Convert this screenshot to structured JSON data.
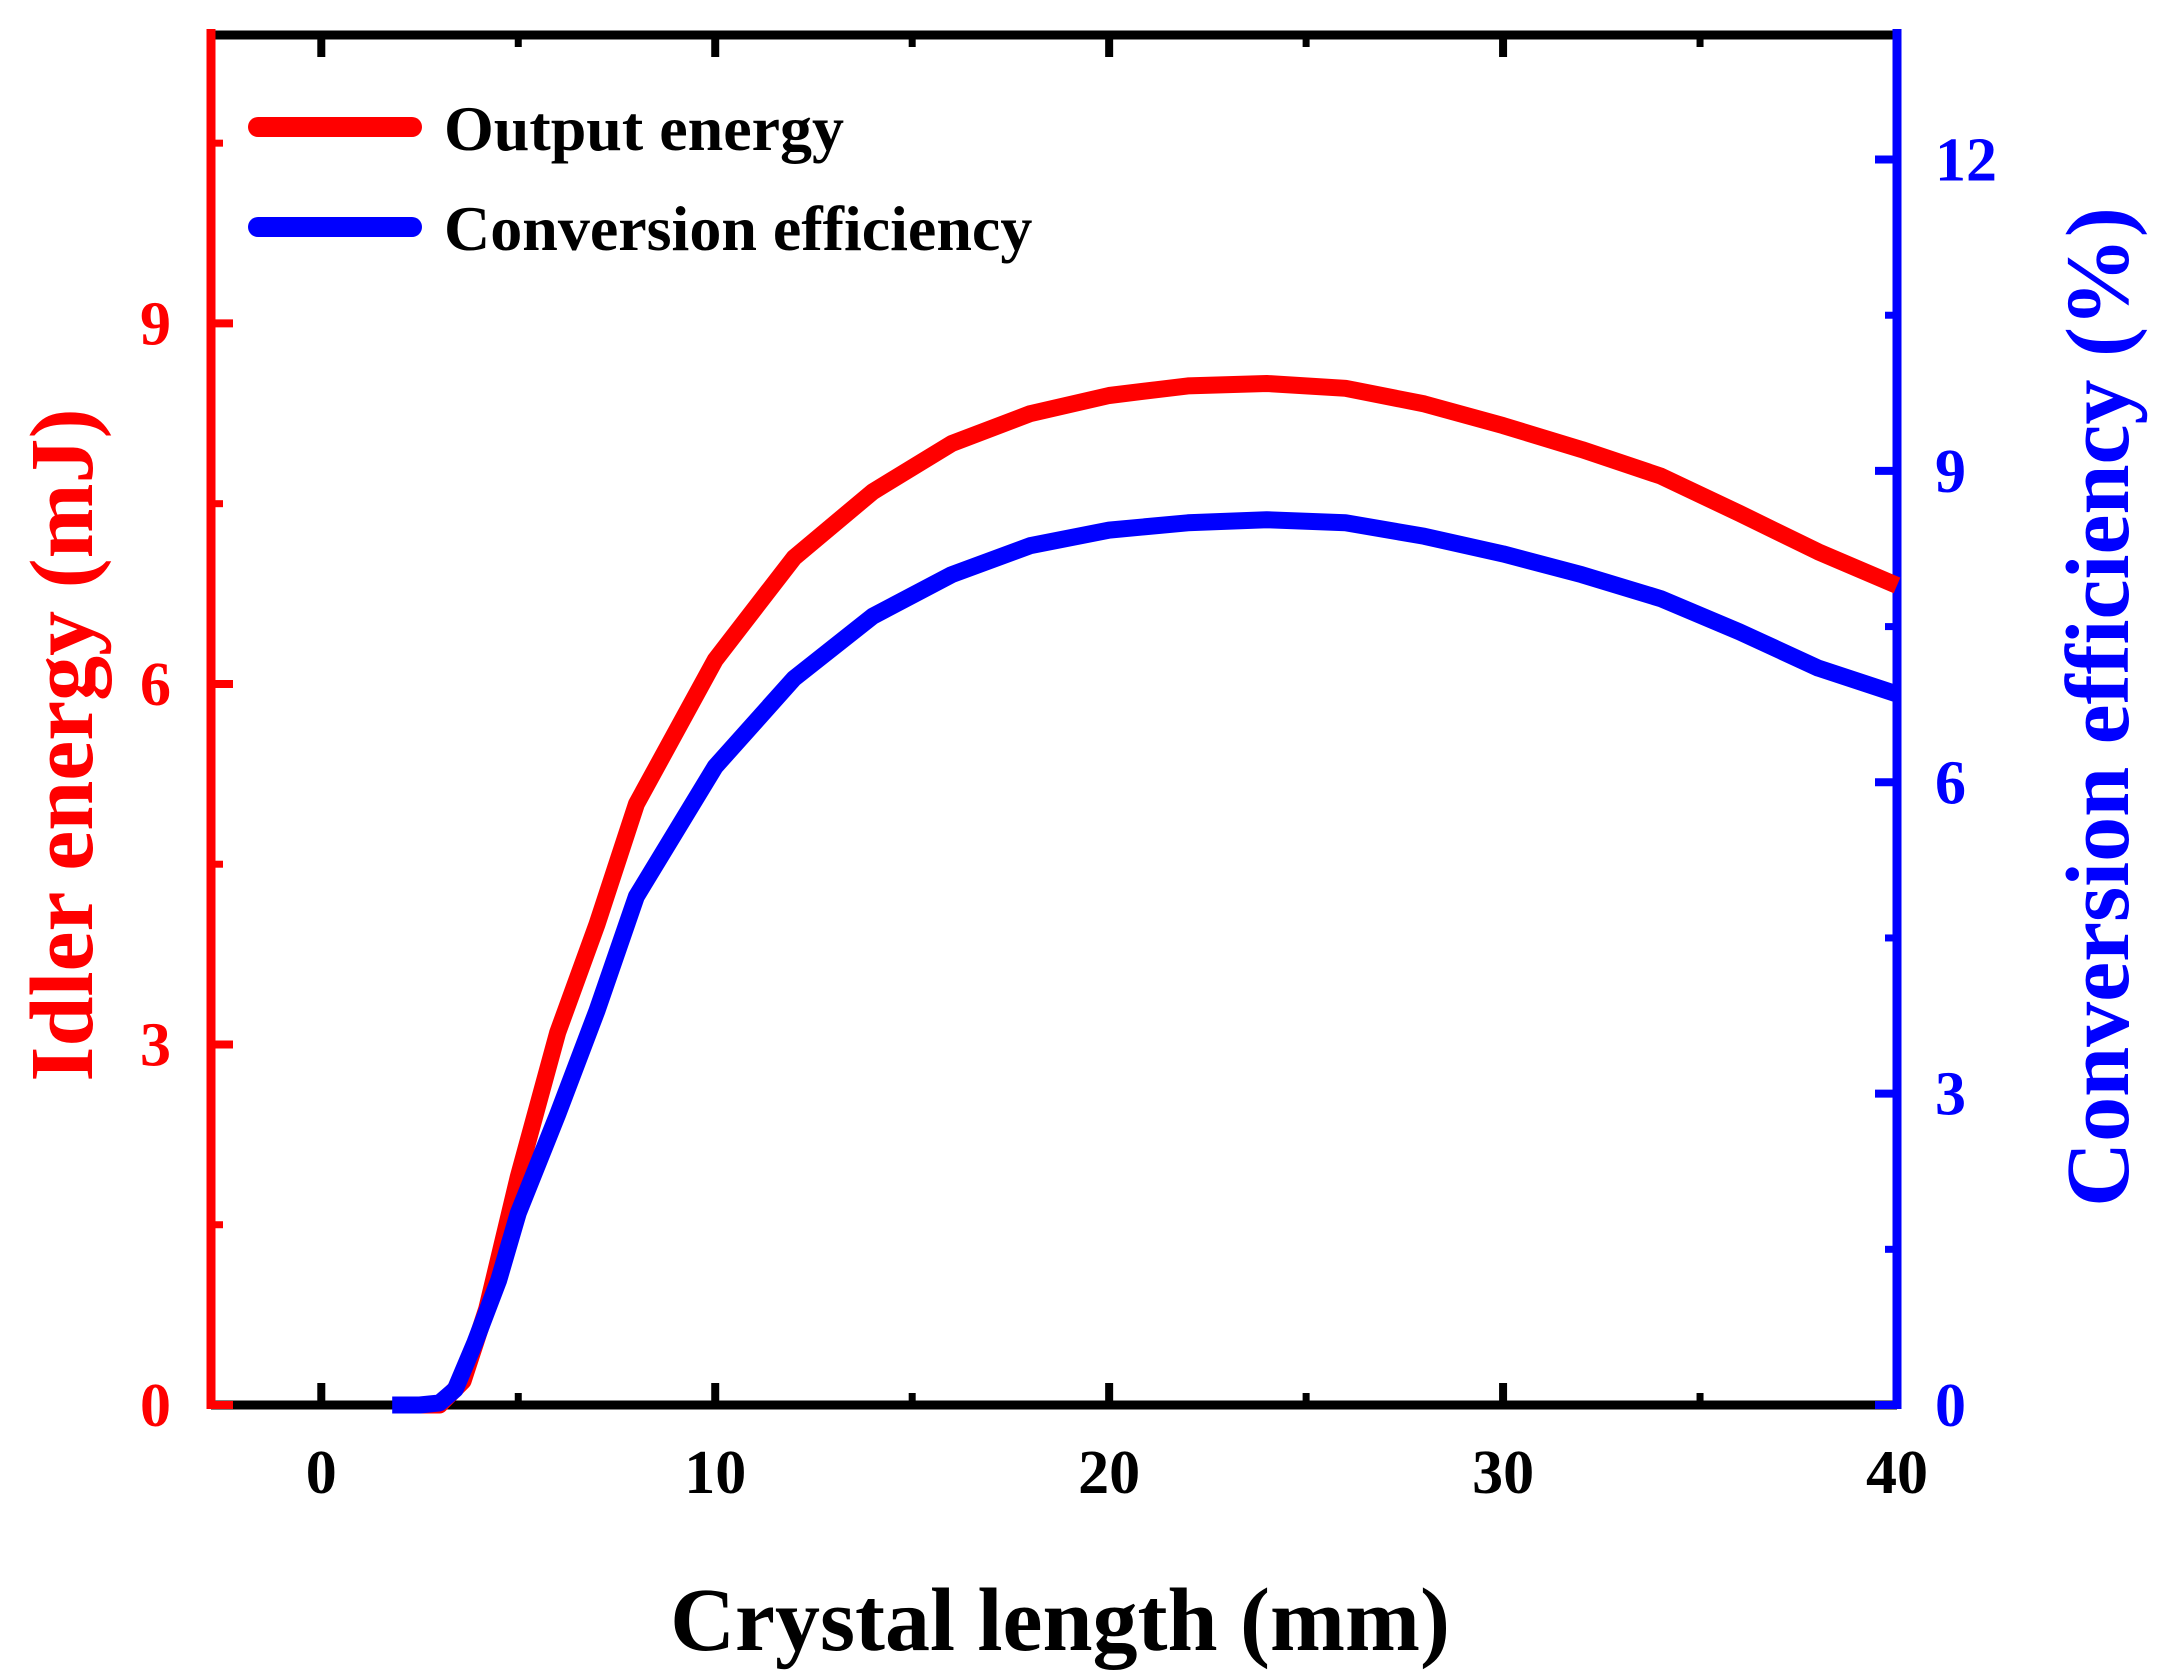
{
  "chart_data": {
    "type": "line",
    "title": "",
    "xlabel": "Crystal length (mm)",
    "ylabel_left": "Idler energy (mJ)",
    "ylabel_right": "Conversion efficiency (%)",
    "xlim": [
      -2.8,
      40
    ],
    "ylim_left": [
      0,
      11.4
    ],
    "ylim_right": [
      0,
      13.2
    ],
    "x_ticks": [
      0,
      10,
      20,
      30,
      40
    ],
    "x_tick_labels": [
      "0",
      "10",
      "20",
      "30",
      "40"
    ],
    "y_left_ticks": [
      0,
      3,
      6,
      9
    ],
    "y_left_tick_labels": [
      "0",
      "3",
      "6",
      "9"
    ],
    "y_right_ticks": [
      0,
      3,
      6,
      9,
      12
    ],
    "y_right_tick_labels": [
      "0",
      "3",
      "6",
      "9",
      "12"
    ],
    "legend_position": "top-left",
    "colors": {
      "left_axis": "#ff0000",
      "right_axis": "#0000ff",
      "x_axis": "#000000"
    },
    "series": [
      {
        "name": "Output energy",
        "axis": "left",
        "color": "#ff0000",
        "x": [
          2,
          3,
          3.6,
          4.2,
          5,
          6,
          7,
          8,
          10,
          12,
          14,
          16,
          18,
          20,
          22,
          24,
          26,
          28,
          30,
          32,
          34,
          36,
          38,
          40
        ],
        "y": [
          0,
          0,
          0.2,
          0.8,
          1.9,
          3.1,
          4.0,
          5.0,
          6.2,
          7.05,
          7.6,
          8.0,
          8.25,
          8.4,
          8.48,
          8.5,
          8.46,
          8.33,
          8.15,
          7.95,
          7.73,
          7.42,
          7.1,
          6.82
        ]
      },
      {
        "name": "Conversion efficiency",
        "axis": "right",
        "color": "#0000ff",
        "x": [
          1.8,
          2.5,
          3.0,
          3.4,
          3.9,
          4.5,
          5,
          6,
          7,
          8,
          10,
          12,
          14,
          16,
          18,
          20,
          22,
          24,
          26,
          28,
          30,
          32,
          34,
          36,
          38,
          40
        ],
        "y": [
          0,
          0,
          0.02,
          0.15,
          0.6,
          1.2,
          1.85,
          2.8,
          3.8,
          4.9,
          6.15,
          7.0,
          7.6,
          8.0,
          8.28,
          8.43,
          8.5,
          8.53,
          8.5,
          8.37,
          8.2,
          8.0,
          7.77,
          7.45,
          7.1,
          6.85
        ]
      }
    ]
  }
}
